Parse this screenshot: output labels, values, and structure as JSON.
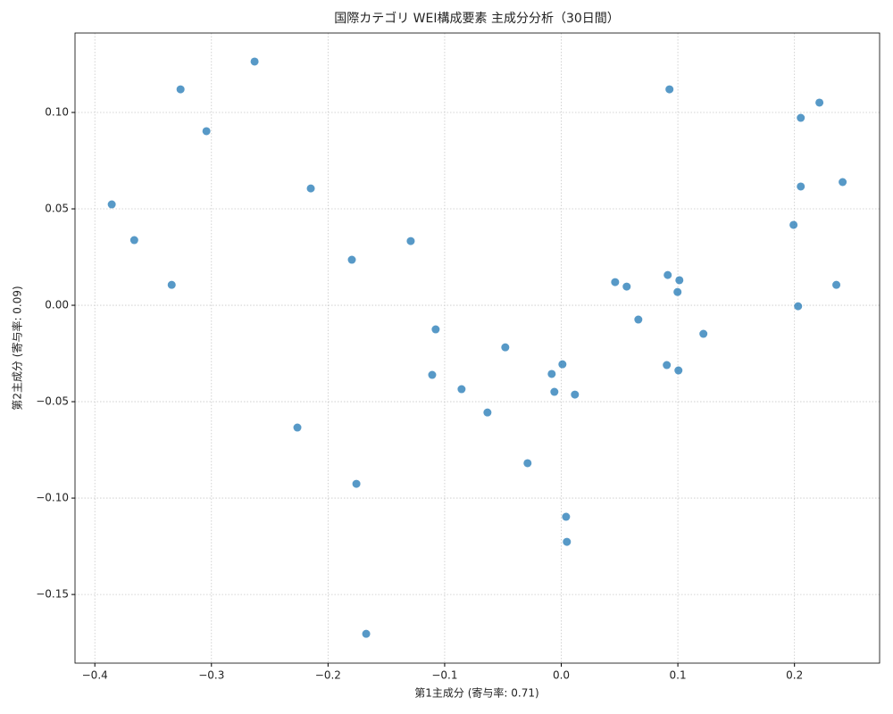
{
  "chart_data": {
    "type": "scatter",
    "title": "国際カテゴリ WEI構成要素 主成分分析（30日間）",
    "x_label": "第1主成分 (寄与率: 0.71)",
    "y_label": "第2主成分 (寄与率: 0.09)",
    "color": "#1f77b4",
    "grid": true,
    "xlim": [
      -0.417,
      0.273
    ],
    "ylim": [
      -0.1856,
      0.1412
    ],
    "xticks": [
      {
        "value": -0.4,
        "label": "−0.4"
      },
      {
        "value": -0.3,
        "label": "−0.3"
      },
      {
        "value": -0.2,
        "label": "−0.2"
      },
      {
        "value": -0.1,
        "label": "−0.1"
      },
      {
        "value": 0,
        "label": "0.0"
      },
      0.1,
      0.2
    ],
    "yticks": [
      {
        "value": -0.15,
        "label": "−0.15"
      },
      {
        "value": -0.1,
        "label": "−0.10"
      },
      {
        "value": -0.05,
        "label": "−0.05"
      },
      {
        "value": 0,
        "label": "0.00"
      },
      {
        "value": 0.05,
        "label": "0.05"
      },
      {
        "value": 0.1,
        "label": "0.10"
      }
    ],
    "x": [
      -0.3855,
      -0.3662,
      -0.3341,
      -0.3265,
      -0.3043,
      -0.263,
      -0.2263,
      -0.2148,
      -0.1796,
      -0.1757,
      -0.1673,
      -0.1291,
      -0.1077,
      -0.1107,
      -0.0855,
      -0.0633,
      -0.048,
      -0.0289,
      -0.0082,
      -0.0059,
      0.001,
      0.0117,
      0.0041,
      0.0048,
      0.0462,
      0.0561,
      0.0661,
      0.0913,
      0.0928,
      0.1013,
      0.0997,
      0.0905,
      0.1005,
      0.1219,
      0.1992,
      0.2031,
      0.2054,
      0.2054,
      0.2214,
      0.2359,
      0.2413
    ],
    "values": [
      0.0523,
      0.0338,
      0.0106,
      0.112,
      0.0903,
      0.1264,
      -0.0634,
      0.0606,
      0.0236,
      -0.0926,
      -0.1704,
      0.0333,
      -0.0125,
      -0.0361,
      -0.0435,
      -0.0556,
      -0.0218,
      -0.0819,
      -0.0356,
      -0.0449,
      -0.0306,
      -0.0463,
      -0.1097,
      -0.1227,
      0.012,
      0.0097,
      -0.0074,
      0.0157,
      0.112,
      0.013,
      0.0069,
      -0.031,
      -0.0338,
      -0.0148,
      0.0417,
      -0.0005,
      0.0972,
      0.0616,
      0.1051,
      0.0106,
      0.0639
    ]
  }
}
